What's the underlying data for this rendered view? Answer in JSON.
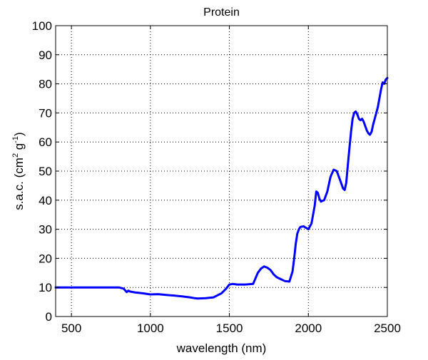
{
  "chart_data": {
    "type": "line",
    "title": "Protein",
    "xlabel": "wavelength (nm)",
    "ylabel": {
      "prefix": "s.a.c. (cm",
      "sup1": "2",
      "mid": " g",
      "sup2": "-1",
      "suffix": ")"
    },
    "xlim": [
      400,
      2500
    ],
    "ylim": [
      0,
      100
    ],
    "xticks": [
      500,
      1000,
      1500,
      2000,
      2500
    ],
    "yticks": [
      0,
      10,
      20,
      30,
      40,
      50,
      60,
      70,
      80,
      90,
      100
    ],
    "grid": true,
    "legend": "none",
    "series": [
      {
        "color": "#0000ff",
        "x": [
          400,
          500,
          600,
          700,
          800,
          830,
          850,
          860,
          870,
          900,
          950,
          1000,
          1050,
          1100,
          1150,
          1200,
          1250,
          1280,
          1300,
          1350,
          1400,
          1450,
          1480,
          1500,
          1520,
          1550,
          1600,
          1650,
          1680,
          1700,
          1720,
          1740,
          1760,
          1780,
          1800,
          1820,
          1850,
          1880,
          1900,
          1910,
          1920,
          1930,
          1940,
          1950,
          1970,
          2000,
          2020,
          2040,
          2050,
          2060,
          2070,
          2080,
          2090,
          2100,
          2120,
          2140,
          2160,
          2180,
          2200,
          2220,
          2230,
          2240,
          2250,
          2260,
          2270,
          2280,
          2290,
          2300,
          2310,
          2320,
          2330,
          2340,
          2350,
          2360,
          2370,
          2380,
          2390,
          2400,
          2410,
          2420,
          2430,
          2440,
          2450,
          2460,
          2470,
          2480,
          2490,
          2500
        ],
        "y": [
          10,
          10,
          10,
          10,
          10,
          9.6,
          8.4,
          8.9,
          8.6,
          8.3,
          8.0,
          7.6,
          7.7,
          7.4,
          7.2,
          6.9,
          6.6,
          6.3,
          6.2,
          6.3,
          6.6,
          8.0,
          9.6,
          11.0,
          11.2,
          11.0,
          11.0,
          11.2,
          15.0,
          16.5,
          17.2,
          16.8,
          16.0,
          14.5,
          13.5,
          13.0,
          12.2,
          12.0,
          15.5,
          20.0,
          25.0,
          28.5,
          30.0,
          30.8,
          31.0,
          30.0,
          32.0,
          38.0,
          43.0,
          42.5,
          40.5,
          39.5,
          39.8,
          40.0,
          43.0,
          48.0,
          50.5,
          50.0,
          47.0,
          44.0,
          43.5,
          46.0,
          52.0,
          58.0,
          63.5,
          68.0,
          70.0,
          70.5,
          69.5,
          68.0,
          67.5,
          68.0,
          67.0,
          65.5,
          64.0,
          63.0,
          62.5,
          63.5,
          66.0,
          68.0,
          70.0,
          72.0,
          75.0,
          78.0,
          80.5,
          80.0,
          81.5,
          82.0
        ]
      }
    ]
  }
}
